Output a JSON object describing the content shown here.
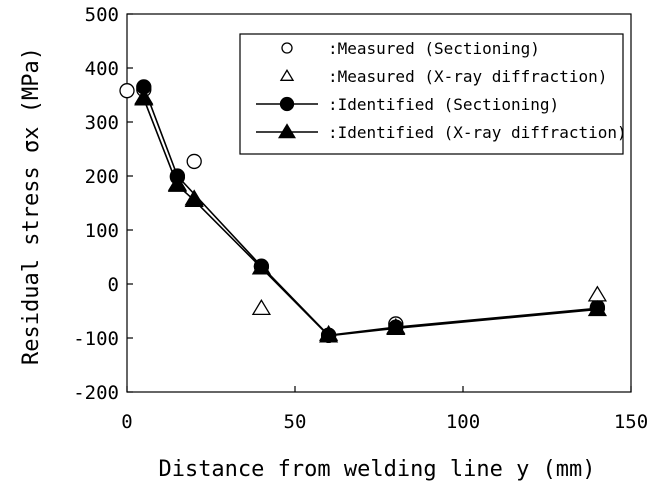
{
  "chart_data": {
    "type": "scatter",
    "xlabel": "Distance from welding line y (mm)",
    "ylabel": "Residual stress σx (MPa)",
    "xlim": [
      0,
      150
    ],
    "ylim": [
      -200,
      500
    ],
    "xticks": [
      0,
      50,
      100,
      150
    ],
    "yticks": [
      500,
      400,
      300,
      200,
      100,
      0,
      -100,
      -200
    ],
    "grid": false,
    "legend_position": "top-right",
    "series": [
      {
        "name": ":Measured (Sectioning)",
        "marker": "circle-open",
        "line": false,
        "x": [
          0,
          5,
          15,
          20,
          40,
          60,
          80,
          140
        ],
        "y": [
          358,
          360,
          198,
          227,
          32,
          -95,
          -74,
          -43
        ]
      },
      {
        "name": ":Measured (X-ray diffraction)",
        "marker": "triangle-open",
        "line": false,
        "x": [
          5,
          15,
          20,
          40,
          60,
          80,
          140
        ],
        "y": [
          345,
          185,
          158,
          -45,
          -93,
          -80,
          -20
        ]
      },
      {
        "name": ":Identified (Sectioning)",
        "marker": "circle-filled",
        "line": true,
        "x": [
          5,
          15,
          40,
          60,
          80,
          140
        ],
        "y": [
          365,
          200,
          33,
          -95,
          -80,
          -45
        ]
      },
      {
        "name": ":Identified (X-ray diffraction)",
        "marker": "triangle-filled",
        "line": true,
        "x": [
          5,
          15,
          20,
          40,
          60,
          80,
          140
        ],
        "y": [
          343,
          183,
          155,
          30,
          -96,
          -82,
          -47
        ]
      }
    ]
  }
}
